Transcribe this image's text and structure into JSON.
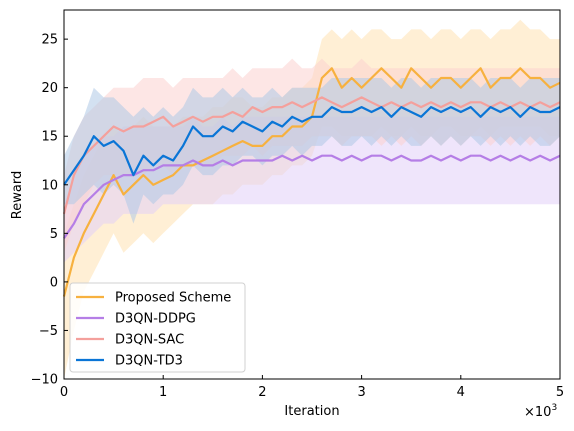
{
  "chart_data": {
    "type": "line",
    "title": "",
    "xlabel": "Iteration",
    "ylabel": "Reward",
    "x_scale_label": "×10",
    "x_scale_exp": "3",
    "xlim": [
      0,
      5000
    ],
    "ylim": [
      -10,
      28
    ],
    "xticks": [
      0,
      1000,
      2000,
      3000,
      4000,
      5000
    ],
    "xtick_labels": [
      "0",
      "1",
      "2",
      "3",
      "4",
      "5"
    ],
    "yticks": [
      -10,
      -5,
      0,
      5,
      10,
      15,
      20,
      25
    ],
    "ytick_labels": [
      "−10",
      "−5",
      "0",
      "5",
      "10",
      "15",
      "20",
      "25"
    ],
    "grid": false,
    "legend_position": "lower-left",
    "series": [
      {
        "name": "Proposed Scheme",
        "color": "#F7B13F",
        "band_color": "#FFE2B3",
        "x": [
          0,
          100,
          200,
          300,
          400,
          500,
          600,
          700,
          800,
          900,
          1000,
          1100,
          1200,
          1300,
          1400,
          1500,
          1600,
          1700,
          1800,
          1900,
          2000,
          2100,
          2200,
          2300,
          2400,
          2500,
          2600,
          2700,
          2800,
          2900,
          3000,
          3100,
          3200,
          3300,
          3400,
          3500,
          3600,
          3700,
          3800,
          3900,
          4000,
          4100,
          4200,
          4300,
          4400,
          4500,
          4600,
          4700,
          4800,
          4900,
          5000
        ],
        "values": [
          -1.5,
          2.5,
          5,
          7,
          9,
          11,
          9,
          10,
          11,
          10,
          10.5,
          11,
          12,
          12,
          12.5,
          13,
          13.5,
          14,
          14.5,
          14,
          14,
          15,
          15,
          16,
          16,
          17,
          21,
          22,
          20,
          21,
          20,
          21,
          22,
          21,
          20,
          22,
          21,
          20,
          21,
          21,
          20,
          21,
          22,
          20,
          21,
          21,
          22,
          21,
          21,
          20,
          20.5
        ],
        "lower": [
          -10,
          -5,
          -1,
          1,
          3,
          5,
          3,
          4,
          5,
          4,
          5,
          6,
          7,
          8,
          8,
          8,
          9,
          9,
          10,
          10,
          10,
          11,
          11,
          12,
          12,
          13,
          16,
          16,
          15,
          15,
          15,
          15,
          16,
          15,
          15,
          16,
          15,
          15,
          16,
          16,
          15,
          15,
          16,
          15,
          16,
          16,
          16,
          16,
          16,
          15,
          15
        ],
        "upper": [
          5,
          8,
          11,
          13,
          15,
          16,
          15,
          16,
          17,
          16,
          16,
          16,
          17,
          17,
          17,
          18,
          18,
          19,
          19,
          18,
          18,
          19,
          19,
          20,
          20,
          21,
          25,
          26,
          25,
          26,
          25,
          26,
          26,
          25,
          25,
          26,
          26,
          25,
          26,
          26,
          25,
          26,
          26,
          25,
          26,
          26,
          27,
          26,
          26,
          25,
          25
        ]
      },
      {
        "name": "D3QN-DDPG",
        "color": "#B57EE6",
        "band_color": "#E2CFF8",
        "x": [
          0,
          100,
          200,
          300,
          400,
          500,
          600,
          700,
          800,
          900,
          1000,
          1100,
          1200,
          1300,
          1400,
          1500,
          1600,
          1700,
          1800,
          1900,
          2000,
          2100,
          2200,
          2300,
          2400,
          2500,
          2600,
          2700,
          2800,
          2900,
          3000,
          3100,
          3200,
          3300,
          3400,
          3500,
          3600,
          3700,
          3800,
          3900,
          4000,
          4100,
          4200,
          4300,
          4400,
          4500,
          4600,
          4700,
          4800,
          4900,
          5000
        ],
        "values": [
          4.5,
          6,
          8,
          9,
          10,
          10.5,
          11,
          11,
          11.5,
          11.5,
          12,
          12,
          12,
          12.5,
          12,
          12,
          12.5,
          12,
          12.5,
          12.5,
          12.5,
          12.5,
          13,
          12.5,
          13,
          12.5,
          13,
          13,
          12.5,
          13,
          12.5,
          13,
          13,
          12.5,
          13,
          12.5,
          12.5,
          13,
          12.5,
          13,
          12.5,
          13,
          13,
          12.5,
          13,
          12.5,
          13,
          12.5,
          13,
          12.5,
          13
        ],
        "lower": [
          2,
          3,
          4,
          5,
          6,
          6,
          7,
          7,
          7,
          7,
          8,
          8,
          8,
          8,
          8,
          8,
          8,
          8,
          8,
          8,
          8,
          8,
          8,
          8,
          8,
          8,
          8,
          8,
          8,
          8,
          8,
          8,
          8,
          8,
          8,
          8,
          8,
          8,
          8,
          8,
          8,
          8,
          8,
          8,
          8,
          8,
          8,
          8,
          8,
          8,
          8
        ],
        "upper": [
          8,
          11,
          13,
          14,
          15,
          15,
          16,
          16,
          16,
          16,
          16,
          16,
          16,
          17,
          16,
          16,
          17,
          16,
          17,
          17,
          17,
          17,
          17,
          17,
          17,
          17,
          17,
          17,
          17,
          17,
          17,
          17,
          17,
          17,
          17,
          17,
          17,
          17,
          17,
          17,
          17,
          17,
          17,
          17,
          17,
          17,
          17,
          17,
          17,
          17,
          17
        ]
      },
      {
        "name": "D3QN-SAC",
        "color": "#F4A09C",
        "band_color": "#FBD2CF",
        "x": [
          0,
          100,
          200,
          300,
          400,
          500,
          600,
          700,
          800,
          900,
          1000,
          1100,
          1200,
          1300,
          1400,
          1500,
          1600,
          1700,
          1800,
          1900,
          2000,
          2100,
          2200,
          2300,
          2400,
          2500,
          2600,
          2700,
          2800,
          2900,
          3000,
          3100,
          3200,
          3300,
          3400,
          3500,
          3600,
          3700,
          3800,
          3900,
          4000,
          4100,
          4200,
          4300,
          4400,
          4500,
          4600,
          4700,
          4800,
          4900,
          5000
        ],
        "values": [
          7,
          11,
          13,
          14,
          15,
          16,
          15.5,
          16,
          16,
          16.5,
          17,
          16,
          16.5,
          17,
          16.5,
          17,
          17,
          17.5,
          17,
          18,
          17.5,
          18,
          18,
          18.5,
          18,
          18.5,
          19,
          18.5,
          18,
          18.5,
          19,
          18.5,
          18,
          18.5,
          18,
          18.5,
          18,
          18.5,
          18,
          18.5,
          18,
          18.5,
          18.5,
          18,
          18.5,
          18,
          18.5,
          18,
          18.5,
          18,
          18.5
        ],
        "lower": [
          3,
          6,
          8,
          10,
          11,
          11,
          11,
          11,
          11,
          12,
          12,
          11,
          12,
          12,
          12,
          12,
          13,
          13,
          13,
          14,
          13,
          14,
          14,
          14,
          14,
          15,
          15,
          15,
          14,
          15,
          15,
          15,
          14,
          15,
          14,
          15,
          14,
          15,
          14,
          15,
          14,
          15,
          15,
          14,
          15,
          14,
          15,
          14,
          15,
          14,
          15
        ],
        "upper": [
          11,
          15,
          17,
          18,
          19,
          20,
          20,
          20,
          21,
          21,
          21,
          20,
          21,
          21,
          21,
          21,
          21,
          22,
          21,
          22,
          22,
          22,
          22,
          23,
          22,
          22,
          23,
          22,
          22,
          22,
          23,
          22,
          22,
          22,
          22,
          22,
          22,
          22,
          22,
          22,
          22,
          22,
          22,
          22,
          22,
          22,
          22,
          22,
          22,
          22,
          22
        ]
      },
      {
        "name": "D3QN-TD3",
        "color": "#0A75D6",
        "band_color": "#AFC8E6",
        "x": [
          0,
          100,
          200,
          300,
          400,
          500,
          600,
          700,
          800,
          900,
          1000,
          1100,
          1200,
          1300,
          1400,
          1500,
          1600,
          1700,
          1800,
          1900,
          2000,
          2100,
          2200,
          2300,
          2400,
          2500,
          2600,
          2700,
          2800,
          2900,
          3000,
          3100,
          3200,
          3300,
          3400,
          3500,
          3600,
          3700,
          3800,
          3900,
          4000,
          4100,
          4200,
          4300,
          4400,
          4500,
          4600,
          4700,
          4800,
          4900,
          5000
        ],
        "values": [
          10,
          11.5,
          13,
          15,
          14,
          14.5,
          13.5,
          11,
          13,
          12,
          13,
          12.5,
          14,
          16,
          15,
          15,
          16,
          15.5,
          16.5,
          16,
          15.5,
          16.5,
          16,
          17,
          16.5,
          17,
          17,
          18,
          17.5,
          17.5,
          18,
          17.5,
          18,
          17,
          18,
          17.5,
          17,
          18,
          17.5,
          18,
          17.5,
          18,
          17,
          18,
          17.5,
          18,
          17,
          18,
          17.5,
          17.5,
          18
        ],
        "lower": [
          8,
          8,
          9,
          10,
          9,
          10,
          9,
          6,
          9,
          8,
          9,
          9,
          10,
          12,
          11,
          11,
          12,
          12,
          13,
          13,
          12,
          13,
          13,
          14,
          13,
          14,
          14,
          15,
          14,
          14,
          15,
          14,
          15,
          14,
          15,
          14,
          14,
          15,
          14,
          15,
          14,
          15,
          14,
          15,
          14,
          15,
          14,
          15,
          14,
          14,
          15
        ],
        "upper": [
          13,
          15,
          17,
          20,
          19,
          19,
          18,
          17,
          18,
          17,
          18,
          17,
          18,
          20,
          19,
          19,
          20,
          19,
          20,
          19,
          19,
          20,
          19,
          20,
          20,
          20,
          20,
          21,
          21,
          21,
          21,
          21,
          21,
          20,
          21,
          21,
          20,
          21,
          21,
          21,
          21,
          21,
          20,
          21,
          21,
          21,
          20,
          21,
          21,
          21,
          21
        ]
      }
    ]
  }
}
